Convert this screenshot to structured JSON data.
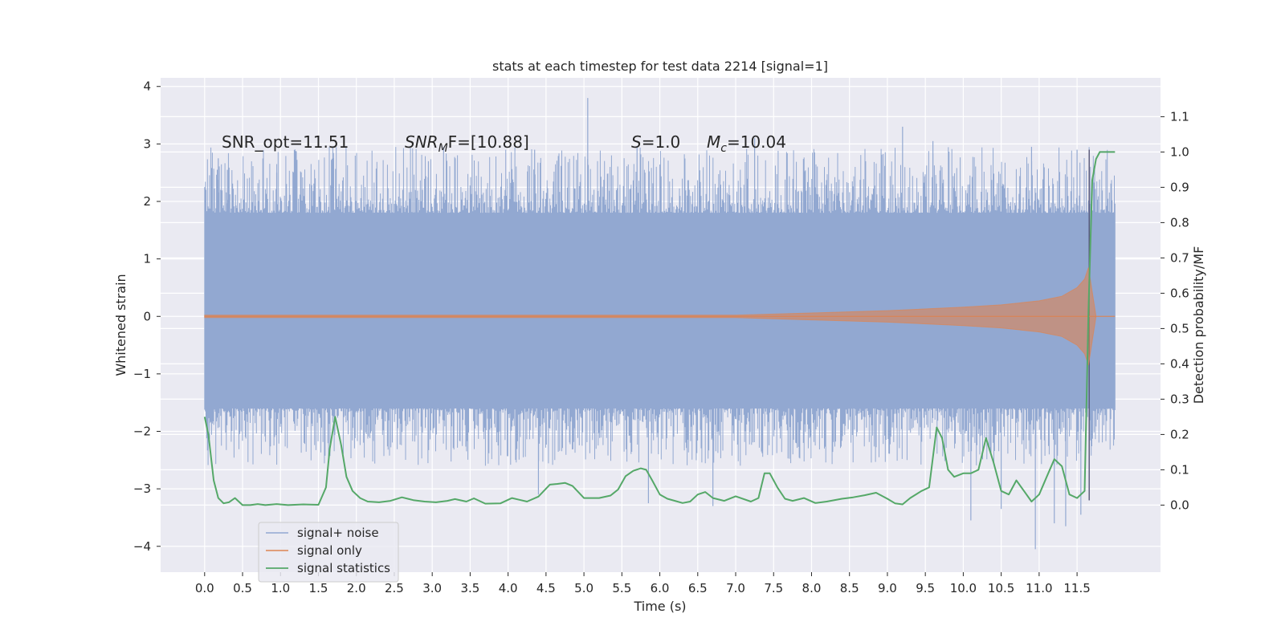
{
  "chart_data": {
    "type": "line",
    "title": "stats at each timestep for test data 2214 [signal=1]",
    "xlabel": "Time (s)",
    "ylabel": "Whitened strain",
    "y2label": "Detection probability/MF",
    "xlim": [
      -0.58,
      12.6
    ],
    "ylim": [
      -4.45,
      4.15
    ],
    "y2lim": [
      -0.19,
      1.21
    ],
    "xticks": [
      0.0,
      0.5,
      1.0,
      1.5,
      2.0,
      2.5,
      3.0,
      3.5,
      4.0,
      4.5,
      5.0,
      5.5,
      6.0,
      6.5,
      7.0,
      7.5,
      8.0,
      8.5,
      9.0,
      9.5,
      10.0,
      10.5,
      11.0,
      11.5
    ],
    "xtick_labels": [
      "0.0",
      "0.5",
      "1.0",
      "1.5",
      "2.0",
      "2.5",
      "3.0",
      "3.5",
      "4.0",
      "4.5",
      "5.0",
      "5.5",
      "6.0",
      "6.5",
      "7.0",
      "7.5",
      "8.0",
      "8.5",
      "9.0",
      "9.5",
      "10.0",
      "10.5",
      "11.0",
      "11.5"
    ],
    "yticks": [
      -4,
      -3,
      -2,
      -1,
      0,
      1,
      2,
      3,
      4
    ],
    "ytick_labels": [
      "−4",
      "−3",
      "−2",
      "−1",
      "0",
      "1",
      "2",
      "3",
      "4"
    ],
    "y2ticks": [
      0.0,
      0.1,
      0.2,
      0.3,
      0.4,
      0.5,
      0.6,
      0.7,
      0.8,
      0.9,
      1.0,
      1.1
    ],
    "y2tick_labels": [
      "0.0",
      "0.1",
      "0.2",
      "0.3",
      "0.4",
      "0.5",
      "0.6",
      "0.7",
      "0.8",
      "0.9",
      "1.0",
      "1.1"
    ],
    "grid": true,
    "legend_position": "lower-left",
    "annotations": {
      "snr_opt": "SNR_opt=11.51",
      "snr_mf_main": "SNR",
      "snr_mf_sub": "M",
      "snr_mf_rest": "F=[10.88]",
      "s_var": "S",
      "s_val": "=1.0",
      "mc_var": "M",
      "mc_sub": "c",
      "mc_val": "=10.04"
    },
    "series": [
      {
        "name": "signal+ noise",
        "color": "#92a8d1",
        "kind": "noise-band",
        "x_range": [
          0.0,
          12.0
        ],
        "typical_envelope": [
          -1.6,
          1.8
        ],
        "peaks": [
          [
            0.18,
            2.75
          ],
          [
            0.3,
            2.55
          ],
          [
            0.95,
            2.5
          ],
          [
            1.7,
            2.75
          ],
          [
            2.95,
            2.7
          ],
          [
            3.15,
            2.95
          ],
          [
            4.35,
            2.9
          ],
          [
            5.05,
            3.8
          ],
          [
            5.7,
            2.95
          ],
          [
            7.25,
            3.1
          ],
          [
            9.2,
            3.3
          ],
          [
            9.6,
            3.05
          ],
          [
            10.9,
            2.95
          ],
          [
            11.5,
            2.9
          ],
          [
            5.85,
            -3.25
          ],
          [
            6.7,
            -3.3
          ],
          [
            10.1,
            -3.55
          ],
          [
            10.95,
            -4.05
          ],
          [
            11.2,
            -3.6
          ],
          [
            11.35,
            -3.65
          ],
          [
            11.55,
            -3.45
          ],
          [
            10.5,
            -3.35
          ],
          [
            4.4,
            -3.1
          ]
        ]
      },
      {
        "name": "signal only",
        "color": "#dd8452",
        "kind": "chirp",
        "x": [
          0.0,
          7.0,
          8.0,
          9.0,
          10.0,
          10.5,
          11.0,
          11.3,
          11.5,
          11.6,
          11.65,
          11.75
        ],
        "amplitude": [
          0.02,
          0.02,
          0.06,
          0.1,
          0.16,
          0.2,
          0.27,
          0.35,
          0.5,
          0.65,
          0.85,
          0.0
        ]
      },
      {
        "name": "signal statistics",
        "color": "#55a868",
        "kind": "line",
        "axis": "y2",
        "x": [
          0.0,
          0.05,
          0.12,
          0.18,
          0.25,
          0.32,
          0.4,
          0.5,
          0.6,
          0.7,
          0.8,
          0.95,
          1.1,
          1.3,
          1.5,
          1.6,
          1.65,
          1.72,
          1.8,
          1.87,
          1.95,
          2.05,
          2.15,
          2.3,
          2.45,
          2.6,
          2.75,
          2.9,
          3.05,
          3.2,
          3.3,
          3.45,
          3.55,
          3.7,
          3.9,
          4.05,
          4.15,
          4.25,
          4.4,
          4.55,
          4.65,
          4.75,
          4.85,
          5.0,
          5.2,
          5.35,
          5.45,
          5.55,
          5.65,
          5.75,
          5.82,
          5.9,
          6.0,
          6.1,
          6.2,
          6.3,
          6.4,
          6.5,
          6.6,
          6.7,
          6.85,
          7.0,
          7.2,
          7.3,
          7.38,
          7.45,
          7.55,
          7.65,
          7.75,
          7.9,
          8.05,
          8.2,
          8.4,
          8.55,
          8.7,
          8.85,
          9.0,
          9.1,
          9.2,
          9.3,
          9.45,
          9.55,
          9.65,
          9.72,
          9.8,
          9.88,
          10.0,
          10.1,
          10.2,
          10.3,
          10.4,
          10.5,
          10.6,
          10.7,
          10.8,
          10.9,
          11.0,
          11.1,
          11.2,
          11.3,
          11.4,
          11.5,
          11.6,
          11.65,
          11.7,
          11.75,
          11.8,
          11.9,
          12.0
        ],
        "values": [
          0.25,
          0.2,
          0.07,
          0.02,
          0.005,
          0.008,
          0.02,
          0.0,
          0.0,
          0.003,
          0.0,
          0.003,
          0.0,
          0.002,
          0.001,
          0.05,
          0.16,
          0.25,
          0.17,
          0.08,
          0.04,
          0.02,
          0.01,
          0.008,
          0.012,
          0.022,
          0.014,
          0.01,
          0.008,
          0.012,
          0.017,
          0.01,
          0.019,
          0.004,
          0.005,
          0.02,
          0.015,
          0.01,
          0.024,
          0.058,
          0.06,
          0.063,
          0.054,
          0.02,
          0.02,
          0.027,
          0.044,
          0.082,
          0.097,
          0.104,
          0.1,
          0.07,
          0.03,
          0.018,
          0.012,
          0.006,
          0.01,
          0.03,
          0.037,
          0.02,
          0.012,
          0.025,
          0.01,
          0.02,
          0.09,
          0.09,
          0.05,
          0.018,
          0.012,
          0.02,
          0.006,
          0.01,
          0.018,
          0.022,
          0.028,
          0.035,
          0.018,
          0.005,
          0.002,
          0.02,
          0.04,
          0.05,
          0.22,
          0.19,
          0.1,
          0.08,
          0.09,
          0.09,
          0.1,
          0.19,
          0.12,
          0.04,
          0.03,
          0.07,
          0.04,
          0.01,
          0.03,
          0.08,
          0.13,
          0.11,
          0.03,
          0.02,
          0.04,
          0.55,
          0.92,
          0.98,
          1.0,
          1.0,
          1.0
        ]
      }
    ]
  }
}
